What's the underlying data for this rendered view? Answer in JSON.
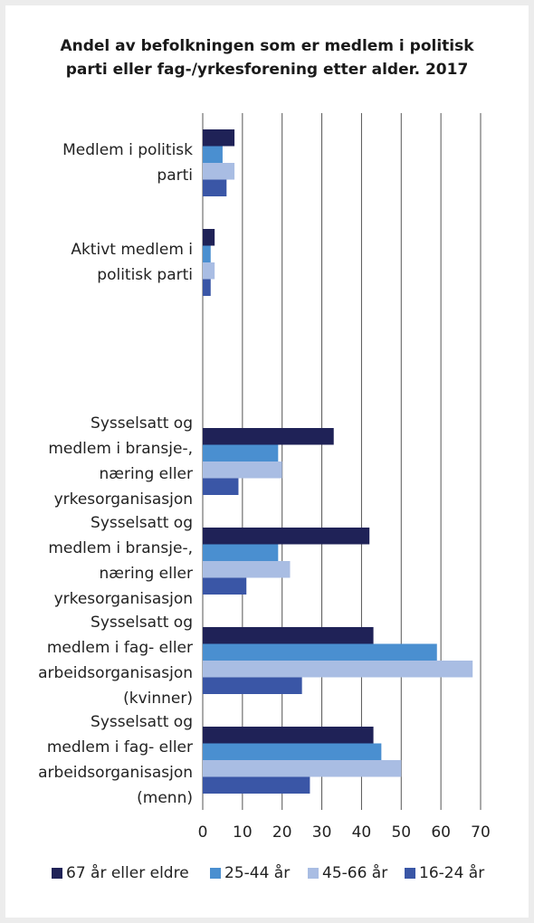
{
  "chart_data": {
    "type": "bar",
    "orientation": "horizontal",
    "title": "Andel av befolkningen som er medlem i politisk parti eller fag-/yrkesforening etter alder. 2017",
    "categories": [
      [
        "Medlem i politisk",
        "parti"
      ],
      [
        "Aktivt medlem i",
        "politisk parti"
      ],
      null,
      [
        "Sysselsatt og",
        "medlem i bransje-,",
        "næring eller",
        "yrkesorganisasjon"
      ],
      [
        "Sysselsatt og",
        "medlem i bransje-,",
        "næring eller",
        "yrkesorganisasjon"
      ],
      [
        "Sysselsatt og",
        "medlem i fag- eller",
        "arbeidsorganisasjon",
        "(kvinner)"
      ],
      [
        "Sysselsatt og",
        "medlem i fag- eller",
        "arbeidsorganisasjon",
        "(menn)"
      ]
    ],
    "series": [
      {
        "name": "67 år eller eldre",
        "color": "#1f2257",
        "values": [
          8,
          3,
          null,
          33,
          42,
          43,
          43
        ]
      },
      {
        "name": "25-44 år",
        "color": "#4a8fd0",
        "values": [
          5,
          2,
          null,
          19,
          19,
          59,
          45
        ]
      },
      {
        "name": "45-66 år",
        "color": "#a9bde3",
        "values": [
          8,
          3,
          null,
          20,
          22,
          68,
          50
        ]
      },
      {
        "name": "16-24 år",
        "color": "#3a56a6",
        "values": [
          6,
          2,
          null,
          9,
          11,
          25,
          27
        ]
      }
    ],
    "xlim": [
      0,
      70
    ],
    "xticks": [
      0,
      10,
      20,
      30,
      40,
      50,
      60,
      70
    ],
    "grid": true,
    "legend": "bottom"
  }
}
